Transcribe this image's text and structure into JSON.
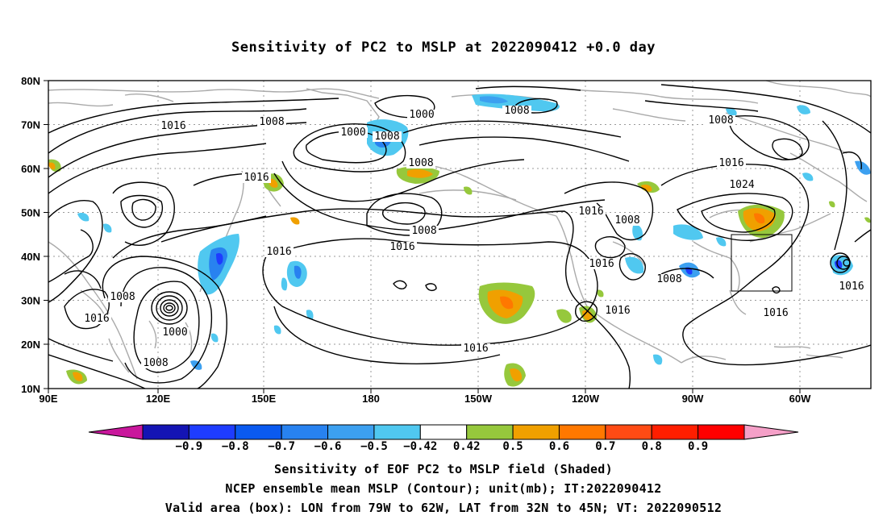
{
  "title": "Sensitivity of PC2 to MSLP at 2022090412 +0.0 day",
  "map": {
    "lat_labels": [
      "80N",
      "70N",
      "60N",
      "50N",
      "40N",
      "30N",
      "20N",
      "10N"
    ],
    "lon_labels": [
      "90E",
      "120E",
      "150E",
      "180",
      "150W",
      "120W",
      "90W",
      "60W"
    ],
    "contour_labels": [
      "1016",
      "1008",
      "1000",
      "1000",
      "1008",
      "1008",
      "1016",
      "1016",
      "1008",
      "1008",
      "1016",
      "1008",
      "1016",
      "1024",
      "1016",
      "1008",
      "1016",
      "1008",
      "1016",
      "1016",
      "1008",
      "1016",
      "1000",
      "1008",
      "1016",
      "1016"
    ],
    "valid_box": {
      "lon_min": -79,
      "lon_max": -62,
      "lat_min": 32,
      "lat_max": 45
    }
  },
  "colorbar": {
    "colors": [
      "#c9179c",
      "#1414b4",
      "#1e3cff",
      "#0a5af0",
      "#2882f0",
      "#3ca0f0",
      "#50c8f0",
      "#ffffff",
      "#96c83c",
      "#f0a000",
      "#ff7800",
      "#ff4b14",
      "#ff1e00",
      "#ff0000",
      "#f5a0c8"
    ],
    "tick_labels": [
      "-0.9",
      "-0.8",
      "-0.7",
      "-0.6",
      "-0.5",
      "-0.42",
      "0.42",
      "0.5",
      "0.6",
      "0.7",
      "0.8",
      "0.9"
    ]
  },
  "captions": [
    "Sensitivity of EOF PC2 to MSLP field (Shaded)",
    "NCEP ensemble mean MSLP (Contour); unit(mb); IT:2022090412",
    "Valid area (box): LON from 79W to 62W, LAT from 32N to 45N; VT: 2022090512"
  ]
}
